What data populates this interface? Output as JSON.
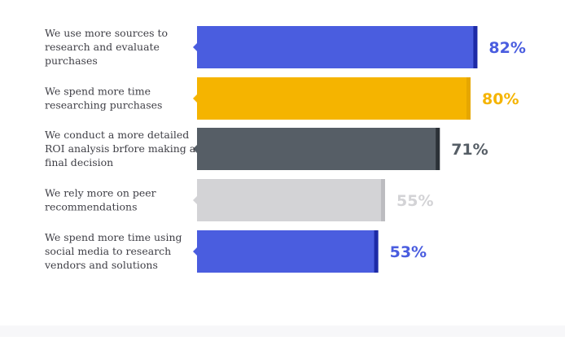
{
  "chart_data": {
    "type": "bar",
    "orientation": "horizontal",
    "unit": "%",
    "value_labels_shown": true,
    "xlim": [
      0,
      100
    ],
    "grid": false,
    "categories": [
      [
        "We use more sources to",
        "research and evaluate",
        "purchases"
      ],
      [
        "We spend more time",
        "researching purchases"
      ],
      [
        "We conduct a more detailed",
        "ROI analysis brfore making a",
        "final decision"
      ],
      [
        "We rely more on peer",
        "recommendations"
      ],
      [
        "We spend more time using",
        "social media to research",
        "vendors and solutions"
      ]
    ],
    "values": [
      82,
      80,
      71,
      55,
      53
    ],
    "value_labels": [
      "82%",
      "80%",
      "71%",
      "55%",
      "53%"
    ],
    "colors": [
      "#4a5ddf",
      "#f5b400",
      "#565e66",
      "#d3d3d6",
      "#4a5ddf"
    ],
    "edge_colors": [
      "#1d2aa6",
      "#e6a700",
      "#2b3137",
      "#bcbcc0",
      "#1d2aa6"
    ],
    "label_colors": [
      "#4a5ddf",
      "#f5b400",
      "#565e66",
      "#d3d3d6",
      "#4a5ddf"
    ]
  }
}
